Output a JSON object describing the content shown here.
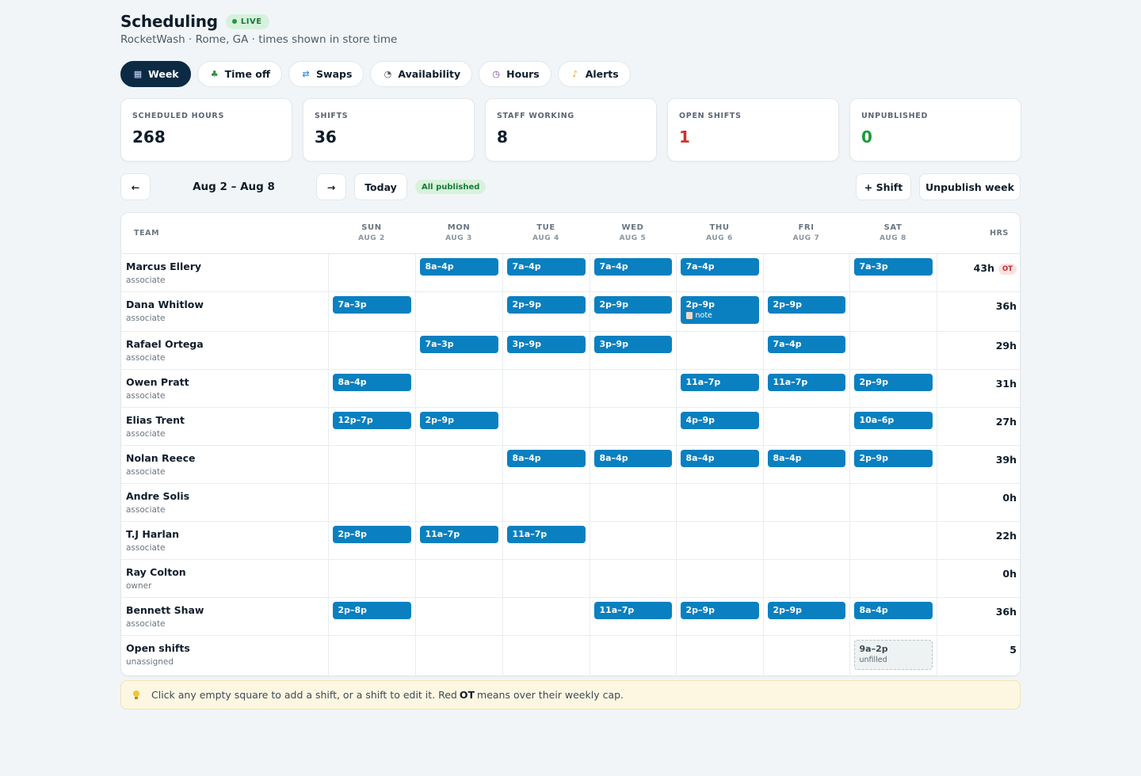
{
  "header": {
    "title": "Scheduling",
    "live_badge": "LIVE",
    "subtitle": "RocketWash · Rome, GA · times shown in store time"
  },
  "tabs": [
    {
      "label": "Week",
      "icon": "calendar-icon",
      "active": true
    },
    {
      "label": "Time off",
      "icon": "palm-tree-icon"
    },
    {
      "label": "Swaps",
      "icon": "swap-icon"
    },
    {
      "label": "Availability",
      "icon": "clock-icon"
    },
    {
      "label": "Hours",
      "icon": "stopwatch-icon"
    },
    {
      "label": "Alerts",
      "icon": "bell-icon"
    }
  ],
  "stats": [
    {
      "label": "SCHEDULED HOURS",
      "value": "268"
    },
    {
      "label": "SHIFTS",
      "value": "36"
    },
    {
      "label": "STAFF WORKING",
      "value": "8"
    },
    {
      "label": "OPEN SHIFTS",
      "value": "1",
      "color": "#d0312d"
    },
    {
      "label": "UNPUBLISHED",
      "value": "0",
      "color": "#1d9a3c"
    }
  ],
  "toolbar": {
    "prev": "←",
    "range": "Aug 2 – Aug 8",
    "next": "→",
    "today": "Today",
    "published_badge": "All published",
    "add_shift": "+ Shift",
    "unpublish": "Unpublish week"
  },
  "grid": {
    "team_header": "TEAM",
    "hrs_header": "HRS",
    "days": [
      {
        "name": "SUN",
        "date": "AUG 2"
      },
      {
        "name": "MON",
        "date": "AUG 3"
      },
      {
        "name": "TUE",
        "date": "AUG 4"
      },
      {
        "name": "WED",
        "date": "AUG 5"
      },
      {
        "name": "THU",
        "date": "AUG 6"
      },
      {
        "name": "FRI",
        "date": "AUG 7"
      },
      {
        "name": "SAT",
        "date": "AUG 8"
      }
    ],
    "rows": [
      {
        "name": "Marcus Ellery",
        "role": "associate",
        "hours": "43h",
        "ot": "OT",
        "shifts": [
          "",
          "8a–4p",
          "7a–4p",
          "7a–4p",
          "7a–4p",
          "",
          "7a–3p"
        ]
      },
      {
        "name": "Dana Whitlow",
        "role": "associate",
        "hours": "36h",
        "shifts": [
          "7a–3p",
          "",
          "2p–9p",
          "2p–9p",
          "2p–9p",
          "2p–9p",
          ""
        ],
        "notes": {
          "4": "note"
        }
      },
      {
        "name": "Rafael Ortega",
        "role": "associate",
        "hours": "29h",
        "shifts": [
          "",
          "7a–3p",
          "3p–9p",
          "3p–9p",
          "",
          "7a–4p",
          ""
        ]
      },
      {
        "name": "Owen Pratt",
        "role": "associate",
        "hours": "31h",
        "shifts": [
          "8a–4p",
          "",
          "",
          "",
          "11a–7p",
          "11a–7p",
          "2p–9p"
        ]
      },
      {
        "name": "Elias Trent",
        "role": "associate",
        "hours": "27h",
        "shifts": [
          "12p–7p",
          "2p–9p",
          "",
          "",
          "4p–9p",
          "",
          "10a–6p"
        ]
      },
      {
        "name": "Nolan Reece",
        "role": "associate",
        "hours": "39h",
        "shifts": [
          "",
          "",
          "8a–4p",
          "8a–4p",
          "8a–4p",
          "8a–4p",
          "2p–9p"
        ]
      },
      {
        "name": "Andre Solis",
        "role": "associate",
        "hours": "0h",
        "shifts": [
          "",
          "",
          "",
          "",
          "",
          "",
          ""
        ]
      },
      {
        "name": "T.J Harlan",
        "role": "associate",
        "hours": "22h",
        "shifts": [
          "2p–8p",
          "11a–7p",
          "11a–7p",
          "",
          "",
          "",
          ""
        ]
      },
      {
        "name": "Ray Colton",
        "role": "owner",
        "hours": "0h",
        "shifts": [
          "",
          "",
          "",
          "",
          "",
          "",
          ""
        ]
      },
      {
        "name": "Bennett Shaw",
        "role": "associate",
        "hours": "36h",
        "shifts": [
          "2p–8p",
          "",
          "",
          "11a–7p",
          "2p–9p",
          "2p–9p",
          "8a–4p"
        ]
      },
      {
        "name": "Open shifts",
        "role": "unassigned",
        "hours": "5",
        "open": true,
        "shifts": [
          "",
          "",
          "",
          "",
          "",
          "",
          "9a–2p"
        ],
        "open_label": "unfilled"
      }
    ]
  },
  "hint": {
    "before": "Click any empty square to add a shift, or a shift to edit it. Red",
    "bold": "OT",
    "after": "means over their weekly cap."
  }
}
